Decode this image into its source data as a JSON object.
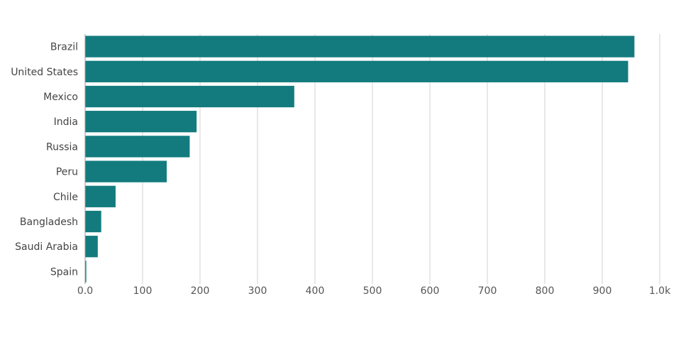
{
  "chart_data": {
    "type": "bar",
    "orientation": "horizontal",
    "categories": [
      "Brazil",
      "United States",
      "Mexico",
      "India",
      "Russia",
      "Peru",
      "Chile",
      "Bangladesh",
      "Saudi Arabia",
      "Spain"
    ],
    "values": [
      956,
      945,
      364,
      194,
      182,
      142,
      53,
      28,
      22,
      2
    ],
    "xlim": [
      0,
      1000
    ],
    "x_ticks": [
      0,
      100,
      200,
      300,
      400,
      500,
      600,
      700,
      800,
      900,
      1000
    ],
    "x_tick_labels": [
      "0.0",
      "100",
      "200",
      "300",
      "400",
      "500",
      "600",
      "700",
      "800",
      "900",
      "1.0k"
    ],
    "grid": "vertical",
    "bar_color": "#137b7e",
    "title": "",
    "xlabel": "",
    "ylabel": ""
  }
}
